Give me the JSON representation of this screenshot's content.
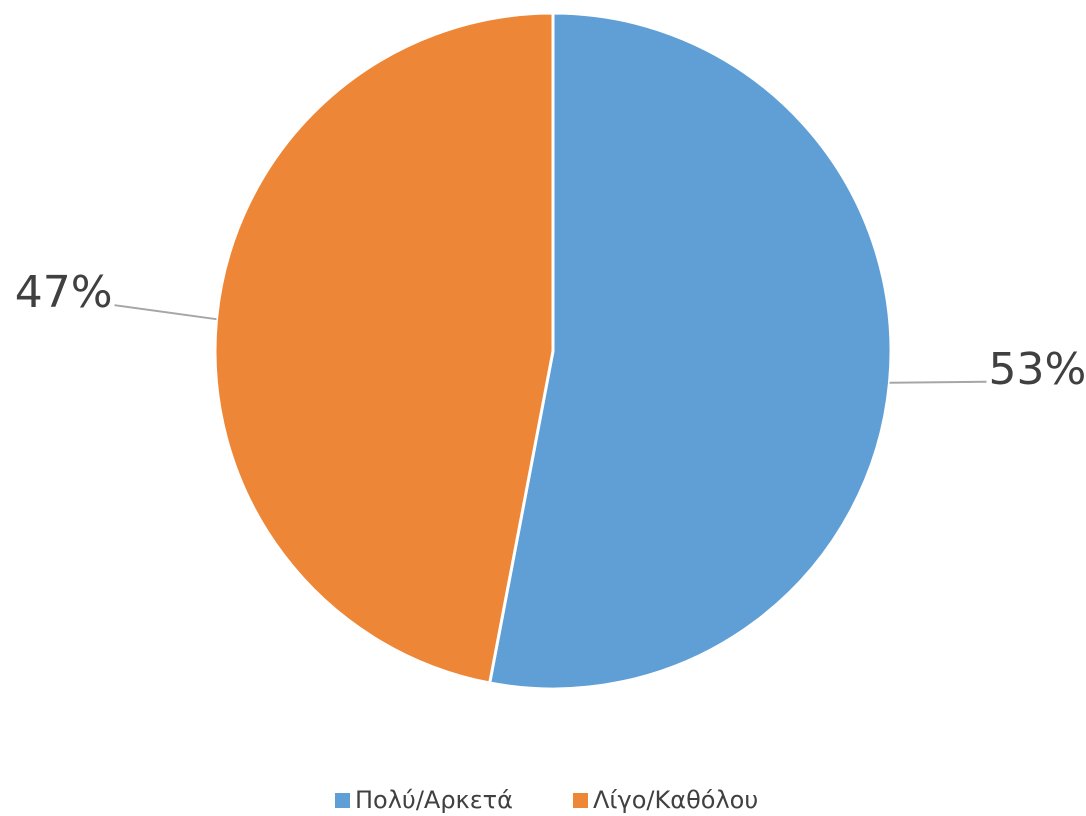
{
  "chart_data": {
    "type": "pie",
    "categories": [
      "Πολύ/Αρκετά",
      "Λίγο/Καθόλου"
    ],
    "values": [
      53,
      47
    ],
    "value_labels": [
      "53%",
      "47%"
    ],
    "colors": [
      "#5f9fd6",
      "#ed8636"
    ],
    "legend": "bottom"
  }
}
